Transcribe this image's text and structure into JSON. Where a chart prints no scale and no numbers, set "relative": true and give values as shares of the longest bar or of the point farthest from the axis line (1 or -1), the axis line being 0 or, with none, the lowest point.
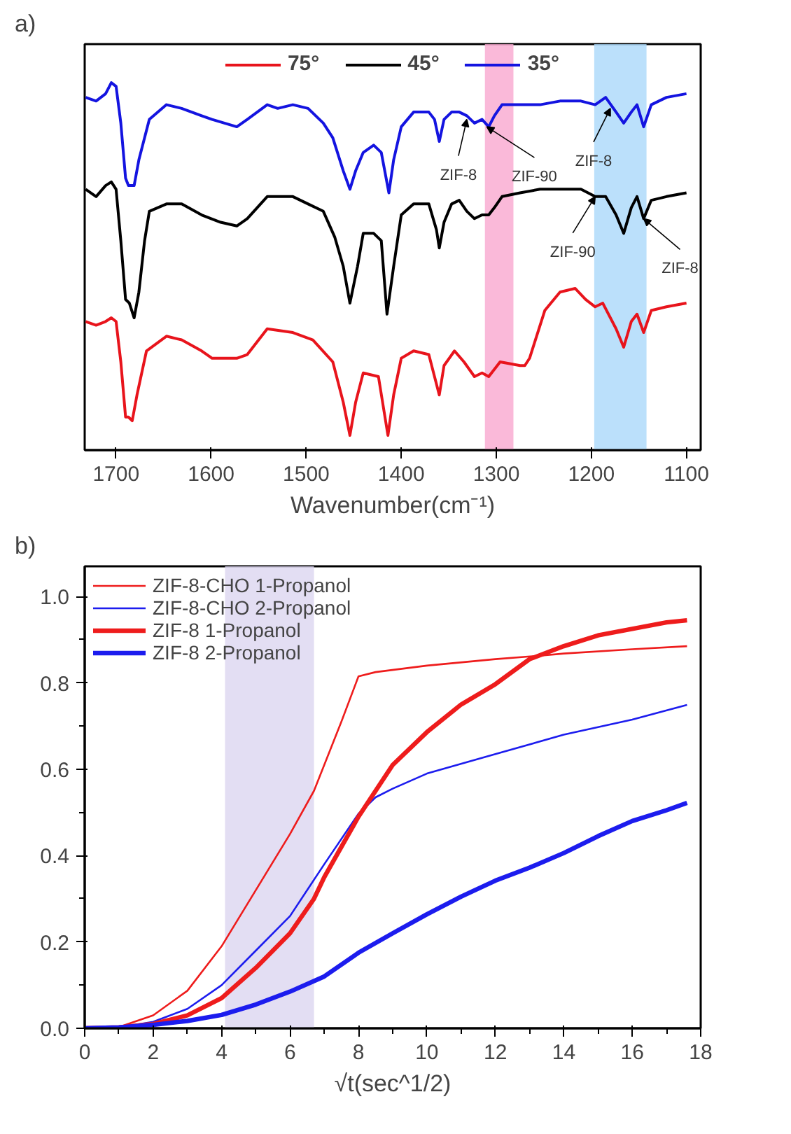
{
  "chart_data": [
    {
      "type": "line",
      "title": "a)",
      "xlabel": "Wavenumber(cm⁻¹)",
      "relative": true,
      "tick_labels": "x",
      "legend": "top",
      "grid": false,
      "xlim": [
        1733,
        1085
      ],
      "xticks": [
        1700,
        1600,
        1500,
        1400,
        1300,
        1200,
        1100
      ],
      "bands": [
        {
          "axis": "x",
          "from": 1312,
          "to": 1282,
          "color": "#f9a8cf"
        },
        {
          "axis": "x",
          "from": 1197,
          "to": 1142,
          "color": "#aad8fa"
        }
      ],
      "series": [
        {
          "name": "75°",
          "color": "#e8141c",
          "x": [
            1732,
            1721,
            1711,
            1705,
            1700,
            1695,
            1690,
            1687,
            1683,
            1678,
            1668,
            1647,
            1631,
            1610,
            1599,
            1573,
            1562,
            1541,
            1514,
            1493,
            1472,
            1461,
            1454,
            1448,
            1440,
            1424,
            1414,
            1408,
            1400,
            1387,
            1371,
            1360,
            1355,
            1344,
            1334,
            1323,
            1315,
            1308,
            1296,
            1275,
            1270,
            1265,
            1249,
            1233,
            1217,
            1206,
            1196,
            1188,
            1174,
            1166,
            1158,
            1152,
            1145,
            1137,
            1121,
            1100
          ],
          "values": [
            0.35,
            0.34,
            0.35,
            0.36,
            0.35,
            0.24,
            0.09,
            0.09,
            0.08,
            0.15,
            0.27,
            0.31,
            0.3,
            0.27,
            0.25,
            0.25,
            0.26,
            0.33,
            0.32,
            0.3,
            0.24,
            0.13,
            0.04,
            0.13,
            0.21,
            0.2,
            0.04,
            0.15,
            0.25,
            0.27,
            0.26,
            0.15,
            0.23,
            0.27,
            0.24,
            0.2,
            0.21,
            0.2,
            0.24,
            0.23,
            0.23,
            0.25,
            0.38,
            0.43,
            0.44,
            0.41,
            0.39,
            0.4,
            0.33,
            0.28,
            0.35,
            0.37,
            0.32,
            0.38,
            0.39,
            0.4
          ]
        },
        {
          "name": "45°",
          "color": "#000000",
          "x": [
            1732,
            1721,
            1711,
            1705,
            1700,
            1695,
            1690,
            1686,
            1681,
            1676,
            1670,
            1665,
            1647,
            1631,
            1610,
            1590,
            1573,
            1562,
            1541,
            1530,
            1514,
            1498,
            1482,
            1470,
            1461,
            1454,
            1446,
            1440,
            1429,
            1421,
            1415,
            1408,
            1400,
            1387,
            1371,
            1363,
            1360,
            1355,
            1347,
            1339,
            1331,
            1323,
            1315,
            1308,
            1302,
            1294,
            1275,
            1254,
            1233,
            1211,
            1196,
            1185,
            1174,
            1166,
            1158,
            1152,
            1145,
            1137,
            1121,
            1100
          ],
          "values": [
            0.71,
            0.69,
            0.72,
            0.73,
            0.71,
            0.57,
            0.41,
            0.4,
            0.36,
            0.43,
            0.57,
            0.65,
            0.67,
            0.67,
            0.64,
            0.62,
            0.61,
            0.63,
            0.69,
            0.69,
            0.69,
            0.67,
            0.65,
            0.58,
            0.5,
            0.4,
            0.5,
            0.59,
            0.59,
            0.57,
            0.37,
            0.5,
            0.64,
            0.67,
            0.67,
            0.6,
            0.55,
            0.62,
            0.67,
            0.68,
            0.65,
            0.63,
            0.64,
            0.64,
            0.66,
            0.69,
            0.7,
            0.71,
            0.71,
            0.71,
            0.69,
            0.69,
            0.64,
            0.59,
            0.66,
            0.69,
            0.63,
            0.68,
            0.69,
            0.7
          ]
        },
        {
          "name": "35°",
          "color": "#1414e0",
          "x": [
            1732,
            1721,
            1711,
            1705,
            1700,
            1695,
            1690,
            1687,
            1681,
            1676,
            1665,
            1647,
            1631,
            1610,
            1599,
            1573,
            1562,
            1541,
            1530,
            1514,
            1498,
            1482,
            1472,
            1461,
            1454,
            1448,
            1440,
            1429,
            1421,
            1413,
            1408,
            1400,
            1387,
            1371,
            1365,
            1360,
            1355,
            1347,
            1339,
            1331,
            1323,
            1315,
            1308,
            1302,
            1294,
            1275,
            1254,
            1233,
            1211,
            1196,
            1185,
            1174,
            1166,
            1158,
            1152,
            1145,
            1137,
            1121,
            1100
          ],
          "values": [
            0.96,
            0.95,
            0.97,
            1.0,
            0.99,
            0.89,
            0.74,
            0.72,
            0.72,
            0.79,
            0.9,
            0.94,
            0.93,
            0.91,
            0.9,
            0.88,
            0.9,
            0.94,
            0.93,
            0.94,
            0.93,
            0.89,
            0.85,
            0.76,
            0.71,
            0.76,
            0.81,
            0.83,
            0.81,
            0.7,
            0.79,
            0.88,
            0.92,
            0.92,
            0.9,
            0.84,
            0.9,
            0.92,
            0.92,
            0.91,
            0.89,
            0.9,
            0.88,
            0.91,
            0.94,
            0.94,
            0.94,
            0.95,
            0.95,
            0.94,
            0.96,
            0.92,
            0.89,
            0.92,
            0.94,
            0.88,
            0.94,
            0.96,
            0.97
          ]
        }
      ],
      "annotations": [
        {
          "text": "ZIF-8",
          "x": 1331,
          "y": 0.9
        },
        {
          "text": "ZIF-90",
          "x": 1310,
          "y": 0.88
        },
        {
          "text": "ZIF-8",
          "x": 1180,
          "y": 0.93
        },
        {
          "text": "ZIF-90",
          "x": 1196,
          "y": 0.69
        },
        {
          "text": "ZIF-8",
          "x": 1145,
          "y": 0.63
        }
      ]
    },
    {
      "type": "line",
      "title": "b)",
      "xlabel": "√t(sec^1/2)",
      "legend": "top left",
      "grid": false,
      "xlim": [
        0,
        18
      ],
      "xticks": [
        0,
        2,
        4,
        6,
        8,
        10,
        12,
        14,
        16,
        18
      ],
      "ylim": [
        0,
        1.07
      ],
      "yticks": [
        {
          "value": 0,
          "label": "0.0"
        },
        0.2,
        0.4,
        0.6,
        0.8,
        {
          "value": 1,
          "label": "1.0"
        }
      ],
      "bands": [
        {
          "axis": "x",
          "from": 4.1,
          "to": 6.7,
          "color": "#dcd6f0"
        }
      ],
      "series": [
        {
          "name": "ZIF-8-CHO 1-Propanol",
          "color": "#ee1c1c",
          "x": [
            0,
            1,
            2,
            3,
            4,
            5,
            6,
            6.7,
            7,
            7.5,
            8,
            8.5,
            10,
            12,
            13.3,
            14,
            16,
            17.6
          ],
          "values": [
            0,
            0.003,
            0.03,
            0.087,
            0.19,
            0.32,
            0.45,
            0.55,
            0.61,
            0.71,
            0.815,
            0.825,
            0.84,
            0.855,
            0.863,
            0.868,
            0.878,
            0.885
          ]
        },
        {
          "name": "ZIF-8-CHO 2-Propanol",
          "color": "#1c1cee",
          "x": [
            0,
            1,
            2,
            3,
            4,
            5,
            6,
            7,
            8,
            8.5,
            9,
            10,
            12,
            14,
            16,
            17.6
          ],
          "values": [
            0,
            0.002,
            0.015,
            0.045,
            0.1,
            0.18,
            0.26,
            0.38,
            0.497,
            0.535,
            0.555,
            0.59,
            0.635,
            0.68,
            0.715,
            0.749
          ]
        },
        {
          "name": "ZIF-8 1-Propanol",
          "color": "#ee1c1c",
          "x": [
            0,
            1,
            2,
            3,
            4,
            5,
            6,
            6.7,
            7,
            7.5,
            8,
            8.5,
            9,
            10,
            11,
            12,
            13,
            14,
            15,
            16,
            17,
            17.6
          ],
          "values": [
            0,
            0.002,
            0.01,
            0.03,
            0.07,
            0.14,
            0.22,
            0.3,
            0.35,
            0.42,
            0.49,
            0.55,
            0.61,
            0.686,
            0.75,
            0.797,
            0.855,
            0.885,
            0.91,
            0.925,
            0.94,
            0.945
          ]
        },
        {
          "name": "ZIF-8 2-Propanol",
          "color": "#1c1cee",
          "x": [
            0,
            1,
            2,
            3,
            4,
            5,
            6,
            7,
            8,
            9,
            10,
            11,
            12,
            13,
            14,
            15,
            16,
            17,
            17.6
          ],
          "values": [
            0,
            0.002,
            0.008,
            0.017,
            0.031,
            0.055,
            0.085,
            0.12,
            0.175,
            0.22,
            0.264,
            0.305,
            0.342,
            0.372,
            0.406,
            0.445,
            0.48,
            0.505,
            0.522
          ]
        }
      ]
    }
  ]
}
